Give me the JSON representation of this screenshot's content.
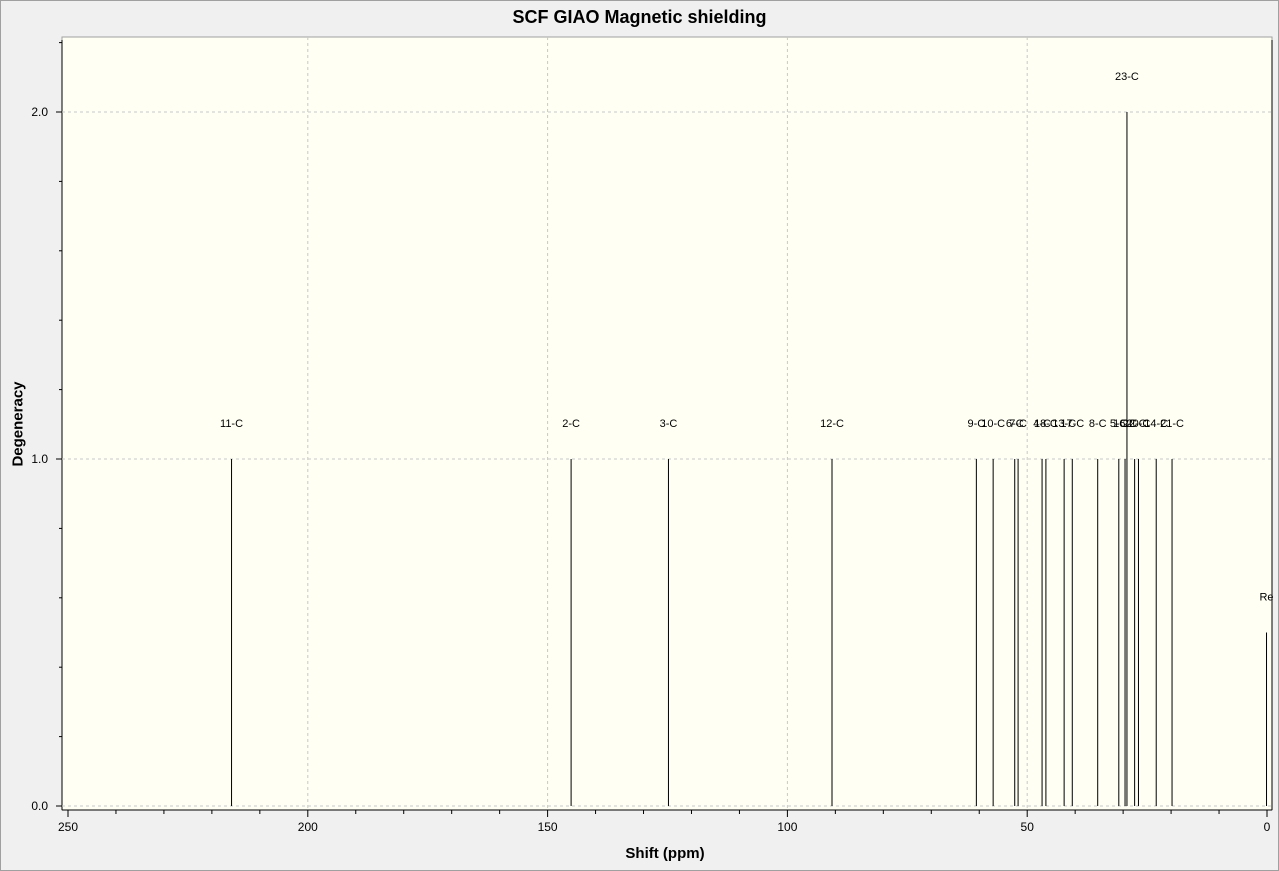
{
  "chart_data": {
    "type": "bar",
    "title": "SCF GIAO Magnetic shielding",
    "xlabel": "Shift (ppm)",
    "ylabel": "Degeneracy",
    "xlim": [
      250,
      0
    ],
    "ylim": [
      0,
      2.2
    ],
    "x_reversed": true,
    "grid": true,
    "x_ticks": [
      250,
      200,
      150,
      100,
      50,
      0
    ],
    "y_ticks": [
      0.0,
      1.0,
      2.0
    ],
    "x_tick_labels": [
      "250",
      "200",
      "150",
      "100",
      "50",
      "0"
    ],
    "y_tick_labels": [
      "0.0",
      "1.0",
      "2.0"
    ],
    "background_color": "#fffff4",
    "bar_color": "#000000",
    "peaks": [
      {
        "label": "11-C",
        "x": 215.9,
        "y": 1
      },
      {
        "label": "2-C",
        "x": 145.1,
        "y": 1
      },
      {
        "label": "3-C",
        "x": 124.8,
        "y": 1
      },
      {
        "label": "12-C",
        "x": 90.7,
        "y": 1
      },
      {
        "label": "9-C",
        "x": 60.6,
        "y": 1
      },
      {
        "label": "10-C",
        "x": 57.1,
        "y": 1
      },
      {
        "label": "6-C",
        "x": 52.6,
        "y": 1
      },
      {
        "label": "7-C",
        "x": 51.9,
        "y": 1
      },
      {
        "label": "4-C",
        "x": 46.9,
        "y": 1
      },
      {
        "label": "18-C",
        "x": 46.1,
        "y": 1
      },
      {
        "label": "13-C",
        "x": 42.3,
        "y": 1
      },
      {
        "label": "17-C",
        "x": 40.6,
        "y": 1
      },
      {
        "label": "8-C",
        "x": 35.3,
        "y": 1
      },
      {
        "label": "5-C",
        "x": 30.9,
        "y": 1
      },
      {
        "label": "16-C",
        "x": 29.6,
        "y": 1
      },
      {
        "label": "23-C",
        "x": 29.2,
        "y": 2
      },
      {
        "label": "22-C",
        "x": 27.6,
        "y": 1
      },
      {
        "label": "20-C",
        "x": 26.8,
        "y": 1
      },
      {
        "label": "14-C",
        "x": 23.1,
        "y": 1
      },
      {
        "label": "21-C",
        "x": 19.8,
        "y": 1
      },
      {
        "label": "Re",
        "x": 0.1,
        "y": 0.5
      }
    ],
    "visible_peak_labels": [
      "11-C",
      "2-C",
      "3-C",
      "12-C",
      "9-C",
      "10-C",
      "6-C",
      "7-C",
      "4-C",
      "18-C",
      "13-C",
      "17-C",
      "8-C",
      "5-C",
      "16-C",
      "23-C",
      "22-C",
      "20-C",
      "14-C",
      "21-C",
      "Re"
    ]
  }
}
